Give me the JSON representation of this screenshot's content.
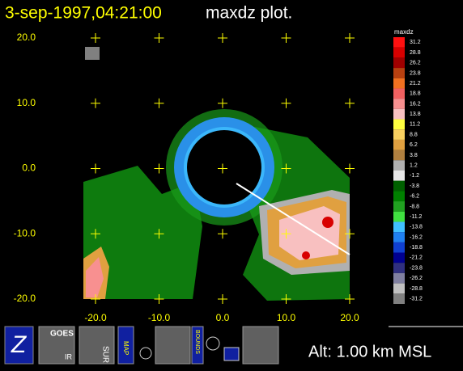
{
  "header": {
    "timestamp": "3-sep-1997,04:21:00",
    "title": "maxdz plot."
  },
  "plot": {
    "xticks": [
      {
        "value": -20,
        "label": "-20.0"
      },
      {
        "value": -10,
        "label": "-10.0"
      },
      {
        "value": 0,
        "label": "0.0"
      },
      {
        "value": 10,
        "label": "10.0"
      },
      {
        "value": 20,
        "label": "20.0"
      }
    ],
    "yticks": [
      {
        "value": 20,
        "label": "20.0"
      },
      {
        "value": 10,
        "label": "10.0"
      },
      {
        "value": 0,
        "label": "0.0"
      },
      {
        "value": -10,
        "label": "-10.0"
      },
      {
        "value": -20,
        "label": "-20.0"
      }
    ]
  },
  "colorbar": {
    "title": "maxdz",
    "levels": [
      {
        "value": 31.2,
        "color": "#ff1010"
      },
      {
        "value": 28.8,
        "color": "#d80000"
      },
      {
        "value": 26.2,
        "color": "#a00000"
      },
      {
        "value": 23.8,
        "color": "#b84010"
      },
      {
        "value": 21.2,
        "color": "#f07020"
      },
      {
        "value": 18.8,
        "color": "#f06060"
      },
      {
        "value": 16.2,
        "color": "#f89090"
      },
      {
        "value": 13.8,
        "color": "#f8c0c0"
      },
      {
        "value": 11.2,
        "color": "#ffff40"
      },
      {
        "value": 8.8,
        "color": "#f8d060"
      },
      {
        "value": 6.2,
        "color": "#e0a040"
      },
      {
        "value": 3.8,
        "color": "#b08040"
      },
      {
        "value": 1.2,
        "color": "#b0b0b0"
      },
      {
        "value": -1.2,
        "color": "#e8e8e8"
      },
      {
        "value": -3.8,
        "color": "#006000"
      },
      {
        "value": -6.2,
        "color": "#008000"
      },
      {
        "value": -8.8,
        "color": "#20a020"
      },
      {
        "value": -11.2,
        "color": "#40e040"
      },
      {
        "value": -13.8,
        "color": "#40c0ff"
      },
      {
        "value": -16.2,
        "color": "#2080f0"
      },
      {
        "value": -18.8,
        "color": "#1040d0"
      },
      {
        "value": -21.2,
        "color": "#000090"
      },
      {
        "value": -23.8,
        "color": "#303080"
      },
      {
        "value": -26.2,
        "color": "#8080a0"
      },
      {
        "value": -28.8,
        "color": "#c0c0c0"
      },
      {
        "value": -31.2,
        "color": "#808080"
      }
    ]
  },
  "toolbar": {
    "goes": "GOES",
    "ir": "IR",
    "sur": "SUR",
    "map": "MAP",
    "bounds": "BOUNDS"
  },
  "footer": {
    "altitude": "Alt: 1.00 km MSL"
  }
}
